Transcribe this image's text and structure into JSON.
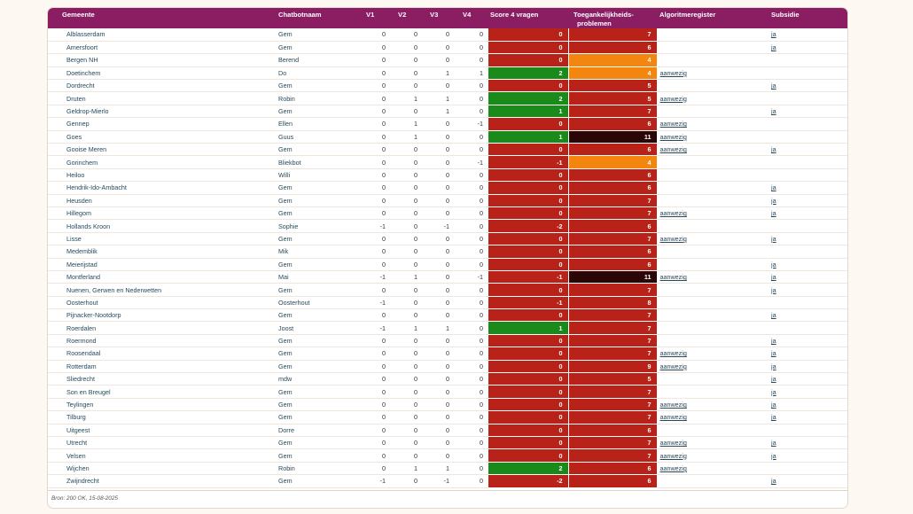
{
  "headers": {
    "gemeente": "Gemeente",
    "chatbot": "Chatbotnaam",
    "v1": "V1",
    "v2": "V2",
    "v3": "V3",
    "v4": "V4",
    "score": "Score 4 vragen",
    "toeg_line1": "Toegankelijkheids-",
    "toeg_line2": "problemen",
    "algo": "Algoritmeregister",
    "subsidie": "Subsidie"
  },
  "colors": {
    "header_bg": "#8b1e62",
    "score_positive": "#1a8a1a",
    "score_nonpositive": "#b82218",
    "toeg_low": "#f2860e",
    "toeg_mid": "#b82218",
    "toeg_high": "#2a0606"
  },
  "rows": [
    {
      "gemeente": "Alblasserdam",
      "chatbot": "Gem",
      "v1": "0",
      "v2": "0",
      "v3": "0",
      "v4": "0",
      "score": "0",
      "toeg": "7",
      "algo": "",
      "subsidie": "ja"
    },
    {
      "gemeente": "Amersfoort",
      "chatbot": "Gem",
      "v1": "0",
      "v2": "0",
      "v3": "0",
      "v4": "0",
      "score": "0",
      "toeg": "6",
      "algo": "",
      "subsidie": "ja"
    },
    {
      "gemeente": "Bergen NH",
      "chatbot": "Berend",
      "v1": "0",
      "v2": "0",
      "v3": "0",
      "v4": "0",
      "score": "0",
      "toeg": "4",
      "algo": "",
      "subsidie": ""
    },
    {
      "gemeente": "Doetinchem",
      "chatbot": "Do",
      "v1": "0",
      "v2": "0",
      "v3": "1",
      "v4": "1",
      "score": "2",
      "toeg": "4",
      "algo": "aanwezig",
      "subsidie": ""
    },
    {
      "gemeente": "Dordrecht",
      "chatbot": "Gem",
      "v1": "0",
      "v2": "0",
      "v3": "0",
      "v4": "0",
      "score": "0",
      "toeg": "5",
      "algo": "",
      "subsidie": "ja"
    },
    {
      "gemeente": "Druten",
      "chatbot": "Robin",
      "v1": "0",
      "v2": "1",
      "v3": "1",
      "v4": "0",
      "score": "2",
      "toeg": "5",
      "algo": "aanwezig",
      "subsidie": ""
    },
    {
      "gemeente": "Geldrop-Mierlo",
      "chatbot": "Gem",
      "v1": "0",
      "v2": "0",
      "v3": "1",
      "v4": "0",
      "score": "1",
      "toeg": "7",
      "algo": "",
      "subsidie": "ja"
    },
    {
      "gemeente": "Gennep",
      "chatbot": "Ellen",
      "v1": "0",
      "v2": "1",
      "v3": "0",
      "v4": "-1",
      "score": "0",
      "toeg": "6",
      "algo": "aanwezig",
      "subsidie": ""
    },
    {
      "gemeente": "Goes",
      "chatbot": "Guus",
      "v1": "0",
      "v2": "1",
      "v3": "0",
      "v4": "0",
      "score": "1",
      "toeg": "11",
      "algo": "aanwezig",
      "subsidie": ""
    },
    {
      "gemeente": "Gooise Meren",
      "chatbot": "Gem",
      "v1": "0",
      "v2": "0",
      "v3": "0",
      "v4": "0",
      "score": "0",
      "toeg": "6",
      "algo": "aanwezig",
      "subsidie": "ja"
    },
    {
      "gemeente": "Gorinchem",
      "chatbot": "Bliekbot",
      "v1": "0",
      "v2": "0",
      "v3": "0",
      "v4": "-1",
      "score": "-1",
      "toeg": "4",
      "algo": "",
      "subsidie": ""
    },
    {
      "gemeente": "Heiloo",
      "chatbot": "Willi",
      "v1": "0",
      "v2": "0",
      "v3": "0",
      "v4": "0",
      "score": "0",
      "toeg": "6",
      "algo": "",
      "subsidie": ""
    },
    {
      "gemeente": "Hendrik-Ido-Ambacht",
      "chatbot": "Gem",
      "v1": "0",
      "v2": "0",
      "v3": "0",
      "v4": "0",
      "score": "0",
      "toeg": "6",
      "algo": "",
      "subsidie": "ja"
    },
    {
      "gemeente": "Heusden",
      "chatbot": "Gem",
      "v1": "0",
      "v2": "0",
      "v3": "0",
      "v4": "0",
      "score": "0",
      "toeg": "7",
      "algo": "",
      "subsidie": "ja"
    },
    {
      "gemeente": "Hillegom",
      "chatbot": "Gem",
      "v1": "0",
      "v2": "0",
      "v3": "0",
      "v4": "0",
      "score": "0",
      "toeg": "7",
      "algo": "aanwezig",
      "subsidie": "ja"
    },
    {
      "gemeente": "Hollands Kroon",
      "chatbot": "Sophie",
      "v1": "-1",
      "v2": "0",
      "v3": "-1",
      "v4": "0",
      "score": "-2",
      "toeg": "6",
      "algo": "",
      "subsidie": ""
    },
    {
      "gemeente": "Lisse",
      "chatbot": "Gem",
      "v1": "0",
      "v2": "0",
      "v3": "0",
      "v4": "0",
      "score": "0",
      "toeg": "7",
      "algo": "aanwezig",
      "subsidie": "ja"
    },
    {
      "gemeente": "Medemblik",
      "chatbot": "Mik",
      "v1": "0",
      "v2": "0",
      "v3": "0",
      "v4": "0",
      "score": "0",
      "toeg": "6",
      "algo": "",
      "subsidie": ""
    },
    {
      "gemeente": "Meierijstad",
      "chatbot": "Gem",
      "v1": "0",
      "v2": "0",
      "v3": "0",
      "v4": "0",
      "score": "0",
      "toeg": "6",
      "algo": "",
      "subsidie": "ja"
    },
    {
      "gemeente": "Montferland",
      "chatbot": "Mai",
      "v1": "-1",
      "v2": "1",
      "v3": "0",
      "v4": "-1",
      "score": "-1",
      "toeg": "11",
      "algo": "aanwezig",
      "subsidie": "ja"
    },
    {
      "gemeente": "Nuenen, Gerwen en Nederwetten",
      "chatbot": "Gem",
      "v1": "0",
      "v2": "0",
      "v3": "0",
      "v4": "0",
      "score": "0",
      "toeg": "7",
      "algo": "",
      "subsidie": "ja"
    },
    {
      "gemeente": "Oosterhout",
      "chatbot": "Oosterhout",
      "v1": "-1",
      "v2": "0",
      "v3": "0",
      "v4": "0",
      "score": "-1",
      "toeg": "8",
      "algo": "",
      "subsidie": ""
    },
    {
      "gemeente": "Pijnacker-Nootdorp",
      "chatbot": "Gem",
      "v1": "0",
      "v2": "0",
      "v3": "0",
      "v4": "0",
      "score": "0",
      "toeg": "7",
      "algo": "",
      "subsidie": "ja"
    },
    {
      "gemeente": "Roerdalen",
      "chatbot": "Joost",
      "v1": "-1",
      "v2": "1",
      "v3": "1",
      "v4": "0",
      "score": "1",
      "toeg": "7",
      "algo": "",
      "subsidie": ""
    },
    {
      "gemeente": "Roermond",
      "chatbot": "Gem",
      "v1": "0",
      "v2": "0",
      "v3": "0",
      "v4": "0",
      "score": "0",
      "toeg": "7",
      "algo": "",
      "subsidie": "ja"
    },
    {
      "gemeente": "Roosendaal",
      "chatbot": "Gem",
      "v1": "0",
      "v2": "0",
      "v3": "0",
      "v4": "0",
      "score": "0",
      "toeg": "7",
      "algo": "aanwezig",
      "subsidie": "ja"
    },
    {
      "gemeente": "Rotterdam",
      "chatbot": "Gem",
      "v1": "0",
      "v2": "0",
      "v3": "0",
      "v4": "0",
      "score": "0",
      "toeg": "9",
      "algo": "aanwezig",
      "subsidie": "ja"
    },
    {
      "gemeente": "Sliedrecht",
      "chatbot": "mdw",
      "v1": "0",
      "v2": "0",
      "v3": "0",
      "v4": "0",
      "score": "0",
      "toeg": "5",
      "algo": "",
      "subsidie": "ja"
    },
    {
      "gemeente": "Son en Breugel",
      "chatbot": "Gem",
      "v1": "0",
      "v2": "0",
      "v3": "0",
      "v4": "0",
      "score": "0",
      "toeg": "7",
      "algo": "",
      "subsidie": "ja"
    },
    {
      "gemeente": "Teylingen",
      "chatbot": "Gem",
      "v1": "0",
      "v2": "0",
      "v3": "0",
      "v4": "0",
      "score": "0",
      "toeg": "7",
      "algo": "aanwezig",
      "subsidie": "ja"
    },
    {
      "gemeente": "Tilburg",
      "chatbot": "Gem",
      "v1": "0",
      "v2": "0",
      "v3": "0",
      "v4": "0",
      "score": "0",
      "toeg": "7",
      "algo": "aanwezig",
      "subsidie": "ja"
    },
    {
      "gemeente": "Uitgeest",
      "chatbot": "Dorre",
      "v1": "0",
      "v2": "0",
      "v3": "0",
      "v4": "0",
      "score": "0",
      "toeg": "6",
      "algo": "",
      "subsidie": ""
    },
    {
      "gemeente": "Utrecht",
      "chatbot": "Gem",
      "v1": "0",
      "v2": "0",
      "v3": "0",
      "v4": "0",
      "score": "0",
      "toeg": "7",
      "algo": "aanwezig",
      "subsidie": "ja"
    },
    {
      "gemeente": "Velsen",
      "chatbot": "Gem",
      "v1": "0",
      "v2": "0",
      "v3": "0",
      "v4": "0",
      "score": "0",
      "toeg": "7",
      "algo": "aanwezig",
      "subsidie": "ja"
    },
    {
      "gemeente": "Wijchen",
      "chatbot": "Robin",
      "v1": "0",
      "v2": "1",
      "v3": "1",
      "v4": "0",
      "score": "2",
      "toeg": "6",
      "algo": "aanwezig",
      "subsidie": ""
    },
    {
      "gemeente": "Zwijndrecht",
      "chatbot": "Gem",
      "v1": "-1",
      "v2": "0",
      "v3": "-1",
      "v4": "0",
      "score": "-2",
      "toeg": "6",
      "algo": "",
      "subsidie": "ja"
    }
  ],
  "footer": "Bron: 200 OK, 15-08-2025"
}
